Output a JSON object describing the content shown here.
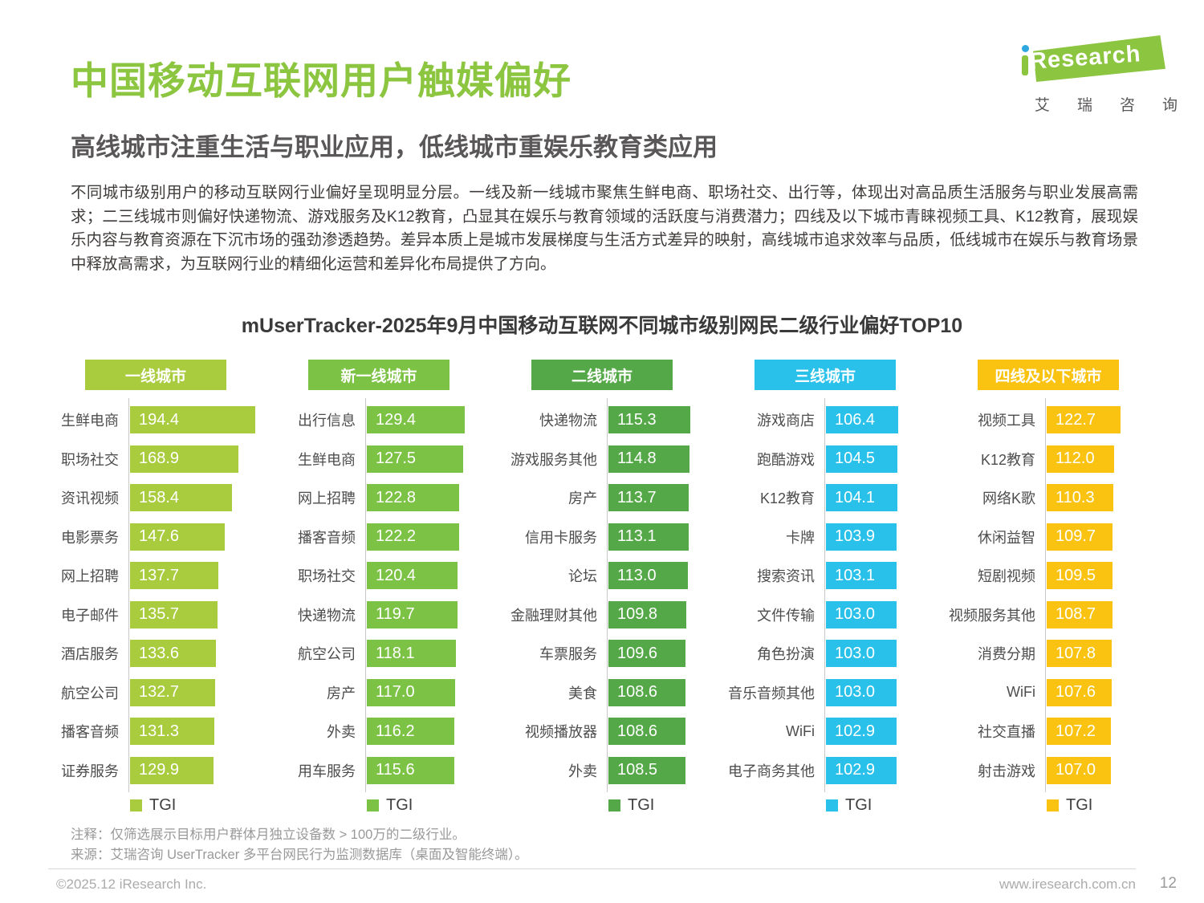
{
  "colors": {
    "brand_green": "#8CC540",
    "dot_blue": "#2EA7E0"
  },
  "logo": {
    "i": "i",
    "brand": "Research",
    "cn": "艾瑞咨询"
  },
  "header": {
    "title": "中国移动互联网用户触媒偏好",
    "subtitle": "高线城市注重生活与职业应用，低线城市重娱乐教育类应用"
  },
  "paragraph": "不同城市级别用户的移动互联网行业偏好呈现明显分层。一线及新一线城市聚焦生鲜电商、职场社交、出行等，体现出对高品质生活服务与职业发展高需求；二三线城市则偏好快递物流、游戏服务及K12教育，凸显其在娱乐与教育领域的活跃度与消费潜力；四线及以下城市青睐视频工具、K12教育，展现娱乐内容与教育资源在下沉市场的强劲渗透趋势。差异本质上是城市发展梯度与生活方式差异的映射，高线城市追求效率与品质，低线城市在娱乐与教育场景中释放高需求，为互联网行业的精细化运营和差异化布局提供了方向。",
  "chart_data": {
    "type": "bar",
    "orientation": "horizontal",
    "title": "mUserTracker-2025年9月中国移动互联网不同城市级别网民二级行业偏好TOP10",
    "legend_label": "TGI",
    "legend_position": "bottom",
    "value_axis_note": "TGI index, bars start at 0, per-column scale",
    "groups": [
      {
        "name": "一线城市",
        "color": "#A9CB3E",
        "categories": [
          "生鲜电商",
          "职场社交",
          "资讯视频",
          "电影票务",
          "网上招聘",
          "电子邮件",
          "酒店服务",
          "航空公司",
          "播客音频",
          "证券服务"
        ],
        "values": [
          194.4,
          168.9,
          158.4,
          147.6,
          137.7,
          135.7,
          133.6,
          132.7,
          131.3,
          129.9
        ]
      },
      {
        "name": "新一线城市",
        "color": "#7CC244",
        "categories": [
          "出行信息",
          "生鲜电商",
          "网上招聘",
          "播客音频",
          "职场社交",
          "快递物流",
          "航空公司",
          "房产",
          "外卖",
          "用车服务"
        ],
        "values": [
          129.4,
          127.5,
          122.8,
          122.2,
          120.4,
          119.7,
          118.1,
          117.0,
          116.2,
          115.6
        ]
      },
      {
        "name": "二线城市",
        "color": "#55A848",
        "categories": [
          "快递物流",
          "游戏服务其他",
          "房产",
          "信用卡服务",
          "论坛",
          "金融理财其他",
          "车票服务",
          "美食",
          "视频播放器",
          "外卖"
        ],
        "values": [
          115.3,
          114.8,
          113.7,
          113.1,
          113.0,
          109.8,
          109.6,
          108.6,
          108.6,
          108.5
        ]
      },
      {
        "name": "三线城市",
        "color": "#29C0EA",
        "categories": [
          "游戏商店",
          "跑酷游戏",
          "K12教育",
          "卡牌",
          "搜索资讯",
          "文件传输",
          "角色扮演",
          "音乐音频其他",
          "WiFi",
          "电子商务其他"
        ],
        "values": [
          106.4,
          104.5,
          104.1,
          103.9,
          103.1,
          103.0,
          103.0,
          103.0,
          102.9,
          102.9
        ]
      },
      {
        "name": "四线及以下城市",
        "color": "#FAC312",
        "categories": [
          "视频工具",
          "K12教育",
          "网络K歌",
          "休闲益智",
          "短剧视频",
          "视频服务其他",
          "消费分期",
          "WiFi",
          "社交直播",
          "射击游戏"
        ],
        "values": [
          122.7,
          112.0,
          110.3,
          109.7,
          109.5,
          108.7,
          107.8,
          107.6,
          107.2,
          107.0
        ]
      }
    ]
  },
  "notes": [
    "注释：仅筛选展示目标用户群体月独立设备数 > 100万的二级行业。",
    "来源：艾瑞咨询 UserTracker 多平台网民行为监测数据库（桌面及智能终端）。"
  ],
  "footer": {
    "copyright": "©2025.12 iResearch Inc.",
    "website": "www.iresearch.com.cn",
    "page": "12"
  }
}
